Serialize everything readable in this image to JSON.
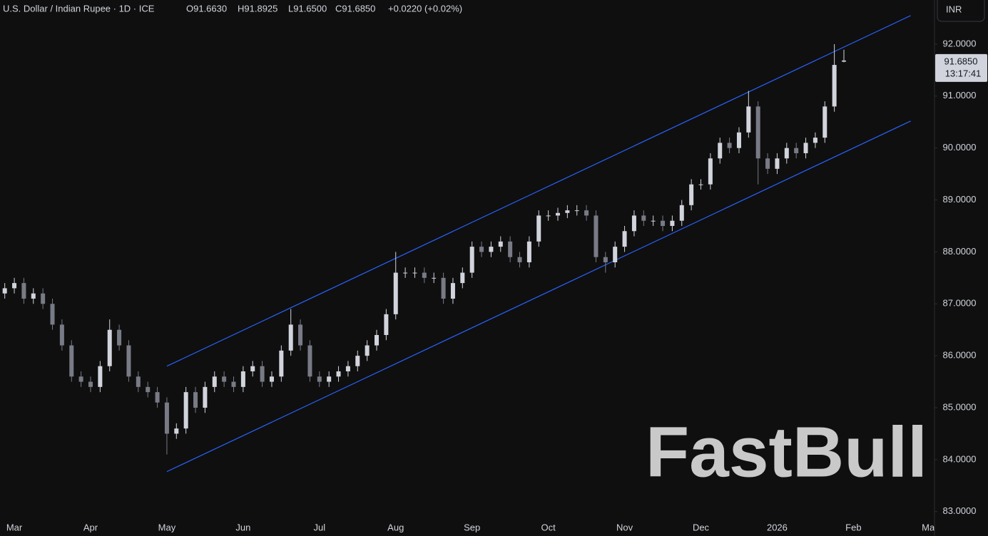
{
  "chart_data": {
    "type": "candlestick",
    "title": "U.S. Dollar / Indian Rupee · 1D · ICE",
    "ohlc_labels": [
      "O91.6630",
      "H91.8925",
      "L91.6500",
      "C91.6850"
    ],
    "change": "+0.0220 (+0.02%)",
    "currency": "INR",
    "last_price": {
      "value": 91.685,
      "label": "91.6850"
    },
    "countdown": "13:17:41",
    "watermark": "FastBull",
    "up_color": "#d1d4dc",
    "down_color": "#787b86",
    "categories": [
      null,
      "Mar",
      null,
      null,
      null,
      null,
      null,
      null,
      null,
      "Apr",
      null,
      null,
      null,
      null,
      null,
      null,
      null,
      "May",
      null,
      null,
      null,
      null,
      null,
      null,
      null,
      "Jun",
      null,
      null,
      null,
      null,
      null,
      null,
      null,
      "Jul",
      null,
      null,
      null,
      null,
      null,
      null,
      null,
      "Aug",
      null,
      null,
      null,
      null,
      null,
      null,
      null,
      "Sep",
      null,
      null,
      null,
      null,
      null,
      null,
      null,
      "Oct",
      null,
      null,
      null,
      null,
      null,
      null,
      null,
      "Nov",
      null,
      null,
      null,
      null,
      null,
      null,
      null,
      "Dec",
      null,
      null,
      null,
      null,
      null,
      null,
      null,
      "2026",
      null,
      null,
      null,
      null,
      null,
      null,
      null,
      "Feb",
      null,
      null,
      null,
      null,
      null,
      null,
      null,
      "Mar"
    ],
    "open": [
      87.2,
      87.3,
      87.4,
      87.1,
      87.2,
      87.0,
      86.6,
      86.2,
      85.6,
      85.5,
      85.4,
      85.8,
      86.5,
      86.2,
      85.6,
      85.4,
      85.3,
      85.1,
      84.5,
      84.6,
      85.3,
      85.0,
      85.4,
      85.6,
      85.5,
      85.4,
      85.7,
      85.8,
      85.5,
      85.6,
      86.1,
      86.6,
      86.2,
      85.6,
      85.5,
      85.6,
      85.7,
      85.8,
      86.0,
      86.2,
      86.4,
      86.8,
      87.6,
      87.6,
      87.6,
      87.5,
      87.5,
      87.1,
      87.4,
      87.6,
      88.1,
      88.0,
      88.1,
      88.2,
      87.9,
      87.8,
      88.2,
      88.7,
      88.7,
      88.75,
      88.8,
      88.8,
      88.7,
      87.9,
      87.8,
      88.1,
      88.4,
      88.7,
      88.6,
      88.6,
      88.5,
      88.6,
      88.9,
      89.3,
      89.3,
      89.8,
      90.1,
      90.0,
      90.3,
      90.8,
      89.8,
      89.6,
      89.8,
      90.0,
      89.9,
      90.1,
      90.2,
      90.8,
      91.663,
      null,
      null,
      null,
      null,
      null,
      null,
      null,
      null,
      null
    ],
    "high": [
      87.4,
      87.5,
      87.5,
      87.3,
      87.3,
      87.1,
      86.7,
      86.3,
      85.7,
      85.6,
      85.9,
      86.7,
      86.6,
      86.3,
      85.7,
      85.5,
      85.4,
      85.2,
      84.7,
      85.4,
      85.4,
      85.5,
      85.7,
      85.7,
      85.6,
      85.8,
      85.9,
      85.9,
      85.7,
      86.2,
      86.9,
      86.7,
      86.3,
      85.7,
      85.7,
      85.8,
      85.9,
      86.1,
      86.3,
      86.5,
      86.9,
      88.0,
      87.7,
      87.7,
      87.7,
      87.6,
      87.6,
      87.5,
      87.7,
      88.2,
      88.2,
      88.2,
      88.3,
      88.3,
      88.0,
      88.3,
      88.8,
      88.8,
      88.85,
      88.9,
      88.9,
      88.9,
      88.8,
      88.0,
      88.2,
      88.5,
      88.8,
      88.8,
      88.7,
      88.7,
      88.7,
      89.0,
      89.4,
      89.4,
      89.9,
      90.2,
      90.2,
      90.4,
      91.1,
      90.9,
      89.9,
      89.9,
      90.1,
      90.1,
      90.2,
      90.3,
      90.9,
      92.0,
      91.8925,
      null,
      null,
      null,
      null,
      null,
      null,
      null,
      null,
      null
    ],
    "low": [
      87.1,
      87.2,
      87.0,
      87.0,
      86.9,
      86.5,
      86.1,
      85.5,
      85.4,
      85.3,
      85.3,
      85.7,
      86.1,
      85.5,
      85.3,
      85.2,
      85.0,
      84.1,
      84.4,
      84.5,
      84.9,
      84.9,
      85.3,
      85.4,
      85.3,
      85.3,
      85.6,
      85.4,
      85.4,
      85.5,
      86.0,
      86.1,
      85.5,
      85.4,
      85.4,
      85.5,
      85.6,
      85.7,
      85.9,
      86.1,
      86.3,
      86.7,
      87.5,
      87.5,
      87.4,
      87.4,
      87.0,
      87.0,
      87.3,
      87.5,
      87.9,
      87.9,
      88.0,
      87.8,
      87.7,
      87.7,
      88.1,
      88.6,
      88.6,
      88.65,
      88.7,
      88.6,
      87.8,
      87.6,
      87.7,
      88.0,
      88.3,
      88.5,
      88.5,
      88.4,
      88.4,
      88.5,
      88.8,
      89.2,
      89.2,
      89.7,
      89.9,
      89.9,
      90.2,
      89.3,
      89.5,
      89.5,
      89.7,
      89.8,
      89.8,
      90.0,
      90.1,
      90.7,
      91.65,
      null,
      null,
      null,
      null,
      null,
      null,
      null,
      null,
      null
    ],
    "close": [
      87.3,
      87.4,
      87.1,
      87.2,
      87.0,
      86.6,
      86.2,
      85.6,
      85.5,
      85.4,
      85.8,
      86.5,
      86.2,
      85.6,
      85.4,
      85.3,
      85.1,
      84.5,
      84.6,
      85.3,
      85.0,
      85.4,
      85.6,
      85.5,
      85.4,
      85.7,
      85.8,
      85.5,
      85.6,
      86.1,
      86.6,
      86.2,
      85.6,
      85.5,
      85.6,
      85.7,
      85.8,
      86.0,
      86.2,
      86.4,
      86.8,
      87.6,
      87.6,
      87.6,
      87.5,
      87.5,
      87.1,
      87.4,
      87.6,
      88.1,
      88.0,
      88.1,
      88.2,
      87.9,
      87.8,
      88.2,
      88.7,
      88.7,
      88.75,
      88.8,
      88.8,
      88.7,
      87.9,
      87.8,
      88.1,
      88.4,
      88.7,
      88.6,
      88.6,
      88.5,
      88.6,
      88.9,
      89.3,
      89.3,
      89.8,
      90.1,
      90.0,
      90.3,
      90.8,
      89.8,
      89.6,
      89.8,
      90.0,
      89.9,
      90.1,
      90.2,
      90.8,
      91.6,
      91.685,
      null,
      null,
      null,
      null,
      null,
      null,
      null,
      null,
      null
    ],
    "channel": {
      "color": "#2962ff",
      "lines": [
        {
          "x": [
            17,
            95
          ],
          "y": [
            85.8,
            92.55
          ]
        },
        {
          "x": [
            17,
            95
          ],
          "y": [
            83.77,
            90.52
          ]
        }
      ]
    },
    "ylim": [
      82.53,
      92.85
    ],
    "yticks": [
      {
        "value": 92,
        "label": "92.0000"
      },
      {
        "value": 91,
        "label": "91.0000"
      },
      {
        "value": 90,
        "label": "90.0000"
      },
      {
        "value": 89,
        "label": "89.0000"
      },
      {
        "value": 88,
        "label": "88.0000"
      },
      {
        "value": 87,
        "label": "87.0000"
      },
      {
        "value": 86,
        "label": "86.0000"
      },
      {
        "value": 85,
        "label": "85.0000"
      },
      {
        "value": 84,
        "label": "84.0000"
      },
      {
        "value": 83,
        "label": "83.0000"
      }
    ]
  }
}
